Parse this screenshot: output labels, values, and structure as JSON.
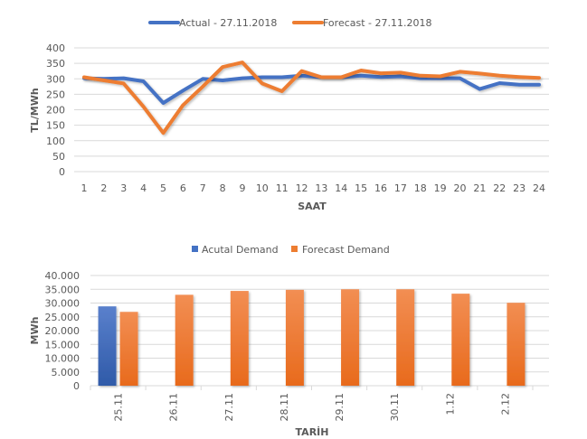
{
  "colors": {
    "actual": "#4472c4",
    "forecast": "#ed7d31",
    "grid": "#d9d9d9",
    "text": "#595959"
  },
  "chart_data": [
    {
      "type": "line",
      "title": "",
      "xlabel": "SAAT",
      "ylabel": "TL/MWh",
      "ylim": [
        0,
        400
      ],
      "yticks": [
        "0",
        "50",
        "100",
        "150",
        "200",
        "250",
        "300",
        "350",
        "400"
      ],
      "ytick_values": [
        0,
        50,
        100,
        150,
        200,
        250,
        300,
        350,
        400
      ],
      "grid": true,
      "legend_position": "top",
      "x": [
        "1",
        "2",
        "3",
        "4",
        "5",
        "6",
        "7",
        "8",
        "9",
        "10",
        "11",
        "12",
        "13",
        "14",
        "15",
        "16",
        "17",
        "18",
        "19",
        "20",
        "21",
        "22",
        "23",
        "24"
      ],
      "series": [
        {
          "name": "Actual - 27.11.2018",
          "color": "#4472c4",
          "values": [
            302,
            300,
            302,
            292,
            222,
            262,
            300,
            295,
            302,
            305,
            305,
            310,
            305,
            305,
            310,
            306,
            308,
            302,
            302,
            302,
            267,
            286,
            281,
            281
          ]
        },
        {
          "name": "Forecast - 27.11.2018",
          "color": "#ed7d31",
          "values": [
            305,
            295,
            285,
            210,
            125,
            215,
            275,
            338,
            353,
            285,
            260,
            325,
            305,
            305,
            327,
            318,
            320,
            310,
            308,
            323,
            317,
            310,
            306,
            303
          ]
        }
      ]
    },
    {
      "type": "bar",
      "title": "",
      "xlabel": "TARİH",
      "ylabel": "MWh",
      "ylim": [
        0,
        40000
      ],
      "yticks": [
        "0",
        "5.000",
        "10.000",
        "15.000",
        "20.000",
        "25.000",
        "30.000",
        "35.000",
        "40.000"
      ],
      "ytick_values": [
        0,
        5000,
        10000,
        15000,
        20000,
        25000,
        30000,
        35000,
        40000
      ],
      "grid": true,
      "legend_position": "top",
      "categories": [
        "25.11",
        "26.11",
        "27.11",
        "28.11",
        "29.11",
        "30.11",
        "1.12",
        "2.12"
      ],
      "series": [
        {
          "name": "Acutal Demand",
          "color": "#4472c4",
          "values": [
            28800,
            null,
            null,
            null,
            null,
            null,
            null,
            null
          ]
        },
        {
          "name": "Forecast Demand",
          "color": "#ed7d31",
          "values": [
            26800,
            33000,
            34400,
            34800,
            35000,
            35000,
            33400,
            30100
          ]
        }
      ]
    }
  ]
}
